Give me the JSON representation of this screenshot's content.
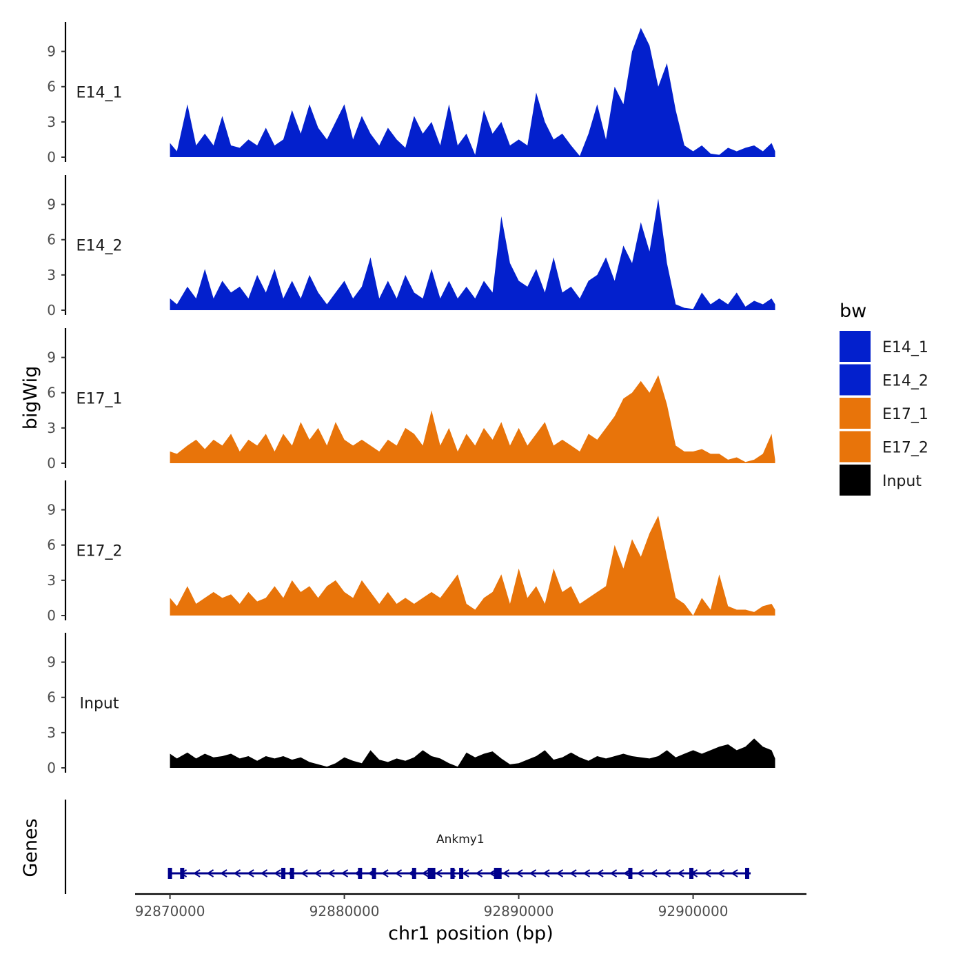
{
  "chart_data": {
    "type": "area",
    "title": "",
    "xlabel": "chr1 position (bp)",
    "ylabel": "bigWig",
    "genes_label": "Genes",
    "xlim": [
      92868000,
      92906500
    ],
    "ylim": [
      0,
      11.5
    ],
    "x_ticks": [
      92870000,
      92880000,
      92890000,
      92900000
    ],
    "x_tick_labels": [
      "92870000",
      "92880000",
      "92890000",
      "92900000"
    ],
    "y_ticks": [
      0,
      3,
      6,
      9
    ],
    "y_tick_labels": [
      "0",
      "3",
      "6",
      "9"
    ],
    "legend": {
      "title": "bw",
      "position": "right",
      "entries": [
        {
          "label": "E14_1",
          "color": "#0320CD"
        },
        {
          "label": "E14_2",
          "color": "#0320CD"
        },
        {
          "label": "E17_1",
          "color": "#E8740A"
        },
        {
          "label": "E17_2",
          "color": "#E8740A"
        },
        {
          "label": "Input",
          "color": "#000000"
        }
      ]
    },
    "series": [
      {
        "name": "E14_1",
        "color": "#0320CD",
        "x": [
          92870000,
          92870400,
          92871000,
          92871500,
          92872000,
          92872500,
          92873000,
          92873500,
          92874000,
          92874500,
          92875000,
          92875500,
          92876000,
          92876500,
          92877000,
          92877500,
          92878000,
          92878500,
          92879000,
          92879500,
          92880000,
          92880500,
          92881000,
          92881500,
          92882000,
          92882500,
          92883000,
          92883500,
          92884000,
          92884500,
          92885000,
          92885500,
          92886000,
          92886500,
          92887000,
          92887500,
          92888000,
          92888500,
          92889000,
          92889500,
          92890000,
          92890500,
          92891000,
          92891500,
          92892000,
          92892500,
          92893000,
          92893500,
          92894000,
          92894500,
          92895000,
          92895500,
          92896000,
          92896500,
          92897000,
          92897500,
          92898000,
          92898500,
          92899000,
          92899500,
          92900000,
          92900500,
          92901000,
          92901500,
          92902000,
          92902500,
          92903000,
          92903500,
          92904000,
          92904500,
          92904700
        ],
        "values": [
          1.2,
          0.5,
          4.5,
          1.0,
          2.0,
          1.0,
          3.5,
          1.0,
          0.8,
          1.5,
          1.0,
          2.5,
          1.0,
          1.5,
          4.0,
          2.0,
          4.5,
          2.5,
          1.5,
          3.0,
          4.5,
          1.5,
          3.5,
          2.0,
          1.0,
          2.5,
          1.5,
          0.8,
          3.5,
          2.0,
          3.0,
          1.0,
          4.5,
          1.0,
          2.0,
          0.2,
          4.0,
          2.0,
          3.0,
          1.0,
          1.5,
          1.0,
          5.5,
          3.0,
          1.5,
          2.0,
          1.0,
          0.1,
          2.0,
          4.5,
          1.5,
          6.0,
          4.5,
          9.0,
          11.0,
          9.5,
          6.0,
          8.0,
          4.0,
          1.0,
          0.5,
          1.0,
          0.3,
          0.2,
          0.8,
          0.5,
          0.8,
          1.0,
          0.5,
          1.2,
          0.5
        ]
      },
      {
        "name": "E14_2",
        "color": "#0320CD",
        "x": [
          92870000,
          92870400,
          92871000,
          92871500,
          92872000,
          92872500,
          92873000,
          92873500,
          92874000,
          92874500,
          92875000,
          92875500,
          92876000,
          92876500,
          92877000,
          92877500,
          92878000,
          92878500,
          92879000,
          92879500,
          92880000,
          92880500,
          92881000,
          92881500,
          92882000,
          92882500,
          92883000,
          92883500,
          92884000,
          92884500,
          92885000,
          92885500,
          92886000,
          92886500,
          92887000,
          92887500,
          92888000,
          92888500,
          92889000,
          92889500,
          92890000,
          92890500,
          92891000,
          92891500,
          92892000,
          92892500,
          92893000,
          92893500,
          92894000,
          92894500,
          92895000,
          92895500,
          92896000,
          92896500,
          92897000,
          92897500,
          92898000,
          92898500,
          92899000,
          92899500,
          92900000,
          92900500,
          92901000,
          92901500,
          92902000,
          92902500,
          92903000,
          92903500,
          92904000,
          92904500,
          92904700
        ],
        "values": [
          1.0,
          0.5,
          2.0,
          1.0,
          3.5,
          1.0,
          2.5,
          1.5,
          2.0,
          1.0,
          3.0,
          1.5,
          3.5,
          1.0,
          2.5,
          1.0,
          3.0,
          1.5,
          0.5,
          1.5,
          2.5,
          1.0,
          2.0,
          4.5,
          1.0,
          2.5,
          1.0,
          3.0,
          1.5,
          1.0,
          3.5,
          1.0,
          2.5,
          1.0,
          2.0,
          1.0,
          2.5,
          1.5,
          8.0,
          4.0,
          2.5,
          2.0,
          3.5,
          1.5,
          4.5,
          1.5,
          2.0,
          1.0,
          2.5,
          3.0,
          4.5,
          2.5,
          5.5,
          4.0,
          7.5,
          5.0,
          9.5,
          4.0,
          0.5,
          0.2,
          0.1,
          1.5,
          0.5,
          1.0,
          0.5,
          1.5,
          0.3,
          0.8,
          0.5,
          1.0,
          0.5
        ]
      },
      {
        "name": "E17_1",
        "color": "#E8740A",
        "x": [
          92870000,
          92870400,
          92871000,
          92871500,
          92872000,
          92872500,
          92873000,
          92873500,
          92874000,
          92874500,
          92875000,
          92875500,
          92876000,
          92876500,
          92877000,
          92877500,
          92878000,
          92878500,
          92879000,
          92879500,
          92880000,
          92880500,
          92881000,
          92881500,
          92882000,
          92882500,
          92883000,
          92883500,
          92884000,
          92884500,
          92885000,
          92885500,
          92886000,
          92886500,
          92887000,
          92887500,
          92888000,
          92888500,
          92889000,
          92889500,
          92890000,
          92890500,
          92891000,
          92891500,
          92892000,
          92892500,
          92893000,
          92893500,
          92894000,
          92894500,
          92895000,
          92895500,
          92896000,
          92896500,
          92897000,
          92897500,
          92898000,
          92898500,
          92899000,
          92899500,
          92900000,
          92900500,
          92901000,
          92901500,
          92902000,
          92902500,
          92903000,
          92903500,
          92904000,
          92904500,
          92904700
        ],
        "values": [
          1.0,
          0.8,
          1.5,
          2.0,
          1.2,
          2.0,
          1.5,
          2.5,
          1.0,
          2.0,
          1.5,
          2.5,
          1.0,
          2.5,
          1.5,
          3.5,
          2.0,
          3.0,
          1.5,
          3.5,
          2.0,
          1.5,
          2.0,
          1.5,
          1.0,
          2.0,
          1.5,
          3.0,
          2.5,
          1.5,
          4.5,
          1.5,
          3.0,
          1.0,
          2.5,
          1.5,
          3.0,
          2.0,
          3.5,
          1.5,
          3.0,
          1.5,
          2.5,
          3.5,
          1.5,
          2.0,
          1.5,
          1.0,
          2.5,
          2.0,
          3.0,
          4.0,
          5.5,
          6.0,
          7.0,
          6.0,
          7.5,
          5.0,
          1.5,
          1.0,
          1.0,
          1.2,
          0.8,
          0.8,
          0.3,
          0.5,
          0.1,
          0.3,
          0.8,
          2.5,
          0.3
        ]
      },
      {
        "name": "E17_2",
        "color": "#E8740A",
        "x": [
          92870000,
          92870400,
          92871000,
          92871500,
          92872000,
          92872500,
          92873000,
          92873500,
          92874000,
          92874500,
          92875000,
          92875500,
          92876000,
          92876500,
          92877000,
          92877500,
          92878000,
          92878500,
          92879000,
          92879500,
          92880000,
          92880500,
          92881000,
          92881500,
          92882000,
          92882500,
          92883000,
          92883500,
          92884000,
          92884500,
          92885000,
          92885500,
          92886000,
          92886500,
          92887000,
          92887500,
          92888000,
          92888500,
          92889000,
          92889500,
          92890000,
          92890500,
          92891000,
          92891500,
          92892000,
          92892500,
          92893000,
          92893500,
          92894000,
          92894500,
          92895000,
          92895500,
          92896000,
          92896500,
          92897000,
          92897500,
          92898000,
          92898500,
          92899000,
          92899500,
          92900000,
          92900500,
          92901000,
          92901500,
          92902000,
          92902500,
          92903000,
          92903500,
          92904000,
          92904500,
          92904700
        ],
        "values": [
          1.5,
          0.8,
          2.5,
          1.0,
          1.5,
          2.0,
          1.5,
          1.8,
          1.0,
          2.0,
          1.2,
          1.5,
          2.5,
          1.5,
          3.0,
          2.0,
          2.5,
          1.5,
          2.5,
          3.0,
          2.0,
          1.5,
          3.0,
          2.0,
          1.0,
          2.0,
          1.0,
          1.5,
          1.0,
          1.5,
          2.0,
          1.5,
          2.5,
          3.5,
          1.0,
          0.5,
          1.5,
          2.0,
          3.5,
          1.0,
          4.0,
          1.5,
          2.5,
          1.0,
          4.0,
          2.0,
          2.5,
          1.0,
          1.5,
          2.0,
          2.5,
          6.0,
          4.0,
          6.5,
          5.0,
          7.0,
          8.5,
          5.0,
          1.5,
          1.0,
          0.0,
          1.5,
          0.5,
          3.5,
          0.8,
          0.5,
          0.5,
          0.3,
          0.8,
          1.0,
          0.5
        ]
      },
      {
        "name": "Input",
        "color": "#000000",
        "x": [
          92870000,
          92870400,
          92871000,
          92871500,
          92872000,
          92872500,
          92873000,
          92873500,
          92874000,
          92874500,
          92875000,
          92875500,
          92876000,
          92876500,
          92877000,
          92877500,
          92878000,
          92878500,
          92879000,
          92879500,
          92880000,
          92880500,
          92881000,
          92881500,
          92882000,
          92882500,
          92883000,
          92883500,
          92884000,
          92884500,
          92885000,
          92885500,
          92886000,
          92886500,
          92887000,
          92887500,
          92888000,
          92888500,
          92889000,
          92889500,
          92890000,
          92890500,
          92891000,
          92891500,
          92892000,
          92892500,
          92893000,
          92893500,
          92894000,
          92894500,
          92895000,
          92895500,
          92896000,
          92896500,
          92897000,
          92897500,
          92898000,
          92898500,
          92899000,
          92899500,
          92900000,
          92900500,
          92901000,
          92901500,
          92902000,
          92902500,
          92903000,
          92903500,
          92904000,
          92904500,
          92904700
        ],
        "values": [
          1.2,
          0.8,
          1.3,
          0.8,
          1.2,
          0.9,
          1.0,
          1.2,
          0.8,
          1.0,
          0.6,
          1.0,
          0.8,
          1.0,
          0.7,
          0.9,
          0.5,
          0.3,
          0.1,
          0.4,
          0.9,
          0.6,
          0.4,
          1.5,
          0.7,
          0.5,
          0.8,
          0.6,
          0.9,
          1.5,
          1.0,
          0.8,
          0.4,
          0.1,
          1.3,
          0.9,
          1.2,
          1.4,
          0.8,
          0.3,
          0.4,
          0.7,
          1.0,
          1.5,
          0.7,
          0.9,
          1.3,
          0.9,
          0.6,
          1.0,
          0.8,
          1.0,
          1.2,
          1.0,
          0.9,
          0.8,
          1.0,
          1.5,
          0.9,
          1.2,
          1.5,
          1.2,
          1.5,
          1.8,
          2.0,
          1.5,
          1.8,
          2.5,
          1.8,
          1.5,
          0.8
        ]
      }
    ],
    "genes": [
      {
        "name": "Ankmy1",
        "start": 92870000,
        "end": 92903300,
        "strand": "-",
        "color": "#00008B",
        "exons": [
          92870000,
          92870700,
          92876500,
          92877000,
          92880900,
          92881700,
          92884000,
          92885000,
          92886200,
          92886700,
          92888800,
          92896400,
          92899900,
          92903100
        ]
      }
    ]
  }
}
